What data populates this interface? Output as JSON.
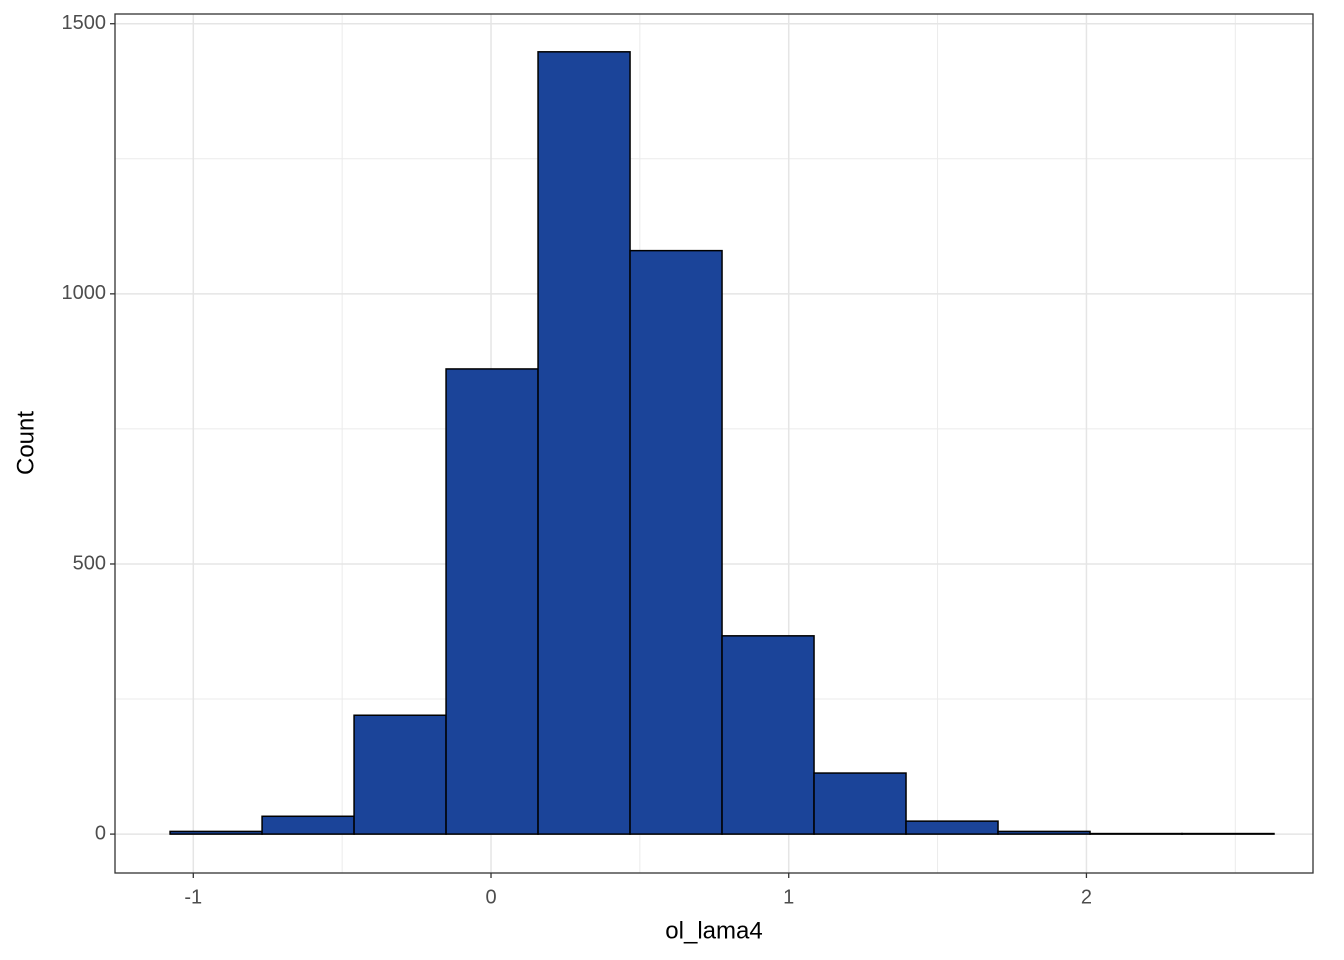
{
  "chart_data": {
    "type": "histogram",
    "x_label": "ol_lama4",
    "y_label": "Count",
    "bins": [
      -1.078,
      -0.769,
      -0.46,
      -0.151,
      0.158,
      0.467,
      0.776,
      1.085,
      1.394,
      1.703,
      2.012,
      2.321,
      2.63
    ],
    "counts": [
      5,
      33,
      220,
      861,
      1448,
      1080,
      367,
      113,
      24,
      5,
      1,
      1
    ],
    "color": "#1b4499",
    "edge_color": "#000000",
    "xlim": [
      -1.263,
      2.761
    ],
    "xticks": [
      -1,
      0,
      1,
      2
    ],
    "x_minor_grid": [
      -0.5,
      0.5,
      1.5,
      2.5
    ],
    "ylim": [
      -72,
      1518
    ],
    "yticks": [
      0,
      500,
      1000,
      1500
    ],
    "y_minor_grid": [
      250,
      750,
      1250
    ],
    "grid": true
  }
}
